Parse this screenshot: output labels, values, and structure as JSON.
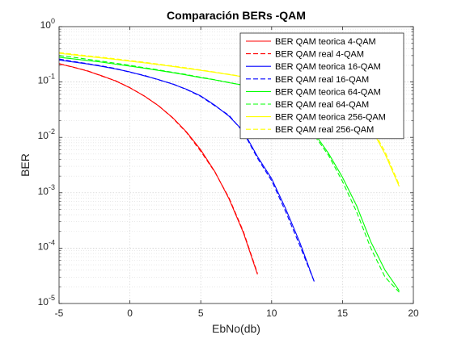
{
  "chart_data": {
    "type": "line",
    "title": "Comparación BERs -QAM",
    "xlabel": "EbNo(db)",
    "ylabel": "BER",
    "xlim": [
      -5,
      20
    ],
    "ylim": [
      1e-05,
      1
    ],
    "yscale": "log",
    "grid": true,
    "minor_grid": true,
    "legend_position": "top-right",
    "x_ticks": [
      -5,
      0,
      5,
      10,
      15,
      20
    ],
    "x_tick_labels": [
      "-5",
      "0",
      "5",
      "10",
      "15",
      "20"
    ],
    "y_ticks": [
      1e-05,
      0.0001,
      0.001,
      0.01,
      0.1,
      1
    ],
    "y_tick_labels": [
      {
        "base": "10",
        "exp": "-5"
      },
      {
        "base": "10",
        "exp": "-4"
      },
      {
        "base": "10",
        "exp": "-3"
      },
      {
        "base": "10",
        "exp": "-2"
      },
      {
        "base": "10",
        "exp": "-1"
      },
      {
        "base": "10",
        "exp": "0"
      }
    ],
    "series": [
      {
        "name": "BER QAM teorica 4-QAM",
        "color": "#ff0000",
        "dash": false,
        "x": [
          -5,
          -4,
          -3,
          -2,
          -1,
          0,
          1,
          2,
          3,
          4,
          5,
          6,
          7,
          8,
          9
        ],
        "y": [
          0.213,
          0.186,
          0.158,
          0.13,
          0.104,
          0.0786,
          0.0563,
          0.0375,
          0.0229,
          0.0125,
          0.00595,
          0.00239,
          0.000773,
          0.000191,
          3.36e-05
        ]
      },
      {
        "name": "BER QAM real 4-QAM",
        "color": "#ff0000",
        "dash": true,
        "x": [
          -5,
          -4,
          -3,
          -2,
          -1,
          0,
          1,
          2,
          3,
          4,
          5,
          6,
          7,
          8,
          9
        ],
        "y": [
          0.215,
          0.185,
          0.16,
          0.128,
          0.105,
          0.079,
          0.056,
          0.0378,
          0.0225,
          0.0122,
          0.0056,
          0.00235,
          0.0008,
          0.0002,
          3.5e-05
        ]
      },
      {
        "name": "BER QAM teorica 16-QAM",
        "color": "#0000ff",
        "dash": false,
        "x": [
          -5,
          -4,
          -3,
          -2,
          -1,
          0,
          1,
          2,
          3,
          4,
          5,
          6,
          7,
          8,
          9,
          10,
          11,
          12,
          13
        ],
        "y": [
          0.25,
          0.23,
          0.212,
          0.192,
          0.172,
          0.152,
          0.13,
          0.111,
          0.092,
          0.074,
          0.056,
          0.038,
          0.024,
          0.013,
          0.0045,
          0.0018,
          0.00051,
          0.000125,
          2.5e-05
        ]
      },
      {
        "name": "BER QAM real 16-QAM",
        "color": "#0000ff",
        "dash": true,
        "x": [
          -5,
          -4,
          -3,
          -2,
          -1,
          0,
          1,
          2,
          3,
          4,
          5,
          6,
          7,
          8,
          9,
          10,
          11,
          12,
          13
        ],
        "y": [
          0.26,
          0.235,
          0.215,
          0.195,
          0.175,
          0.15,
          0.132,
          0.11,
          0.093,
          0.073,
          0.055,
          0.037,
          0.025,
          0.0125,
          0.0042,
          0.00165,
          0.00045,
          0.00011,
          2.5e-05
        ]
      },
      {
        "name": "BER QAM teorica 64-QAM",
        "color": "#00ff00",
        "dash": false,
        "x": [
          -5,
          -4,
          -3,
          -2,
          -1,
          0,
          1,
          2,
          3,
          4,
          5,
          6,
          7,
          8,
          9,
          10,
          11,
          12,
          13,
          14,
          15,
          16,
          17,
          18,
          19
        ],
        "y": [
          0.28,
          0.262,
          0.245,
          0.228,
          0.21,
          0.194,
          0.178,
          0.162,
          0.148,
          0.134,
          0.12,
          0.109,
          0.097,
          0.088,
          0.075,
          0.058,
          0.04,
          0.025,
          0.012,
          0.0052,
          0.0019,
          0.00058,
          0.00013,
          4e-05,
          1.7e-05
        ]
      },
      {
        "name": "BER QAM real 64-QAM",
        "color": "#00ff00",
        "dash": true,
        "x": [
          -5,
          -4,
          -3,
          -2,
          -1,
          0,
          1,
          2,
          3,
          4,
          5,
          6,
          7,
          8,
          9,
          10,
          11,
          12,
          13,
          14,
          15,
          16,
          17,
          18,
          19
        ],
        "y": [
          0.3,
          0.28,
          0.258,
          0.238,
          0.218,
          0.2,
          0.182,
          0.166,
          0.15,
          0.136,
          0.122,
          0.11,
          0.098,
          0.087,
          0.073,
          0.056,
          0.038,
          0.024,
          0.011,
          0.0048,
          0.0016,
          0.00045,
          0.0001,
          3e-05,
          1.6e-05
        ]
      },
      {
        "name": "BER QAM teorica 256-QAM",
        "color": "#ffff00",
        "dash": false,
        "x": [
          -5,
          -4,
          -3,
          -2,
          -1,
          0,
          1,
          2,
          3,
          4,
          5,
          6,
          7,
          8,
          9,
          10,
          11,
          12,
          13,
          14,
          15,
          16,
          17,
          18,
          19
        ],
        "y": [
          0.33,
          0.31,
          0.29,
          0.272,
          0.255,
          0.238,
          0.222,
          0.206,
          0.191,
          0.176,
          0.162,
          0.149,
          0.136,
          0.124,
          0.112,
          0.101,
          0.09,
          0.079,
          0.066,
          0.055,
          0.042,
          0.031,
          0.015,
          0.005,
          0.0013
        ]
      },
      {
        "name": "BER QAM real 256-QAM",
        "color": "#ffff00",
        "dash": true,
        "x": [
          -5,
          -4,
          -3,
          -2,
          -1,
          0,
          1,
          2,
          3,
          4,
          5,
          6,
          7,
          8,
          9,
          10,
          11,
          12,
          13,
          14,
          15,
          16,
          17,
          18,
          19
        ],
        "y": [
          0.34,
          0.318,
          0.298,
          0.28,
          0.262,
          0.244,
          0.228,
          0.211,
          0.195,
          0.18,
          0.165,
          0.151,
          0.138,
          0.125,
          0.113,
          0.102,
          0.091,
          0.08,
          0.067,
          0.056,
          0.043,
          0.032,
          0.016,
          0.0055,
          0.0014
        ]
      }
    ]
  }
}
